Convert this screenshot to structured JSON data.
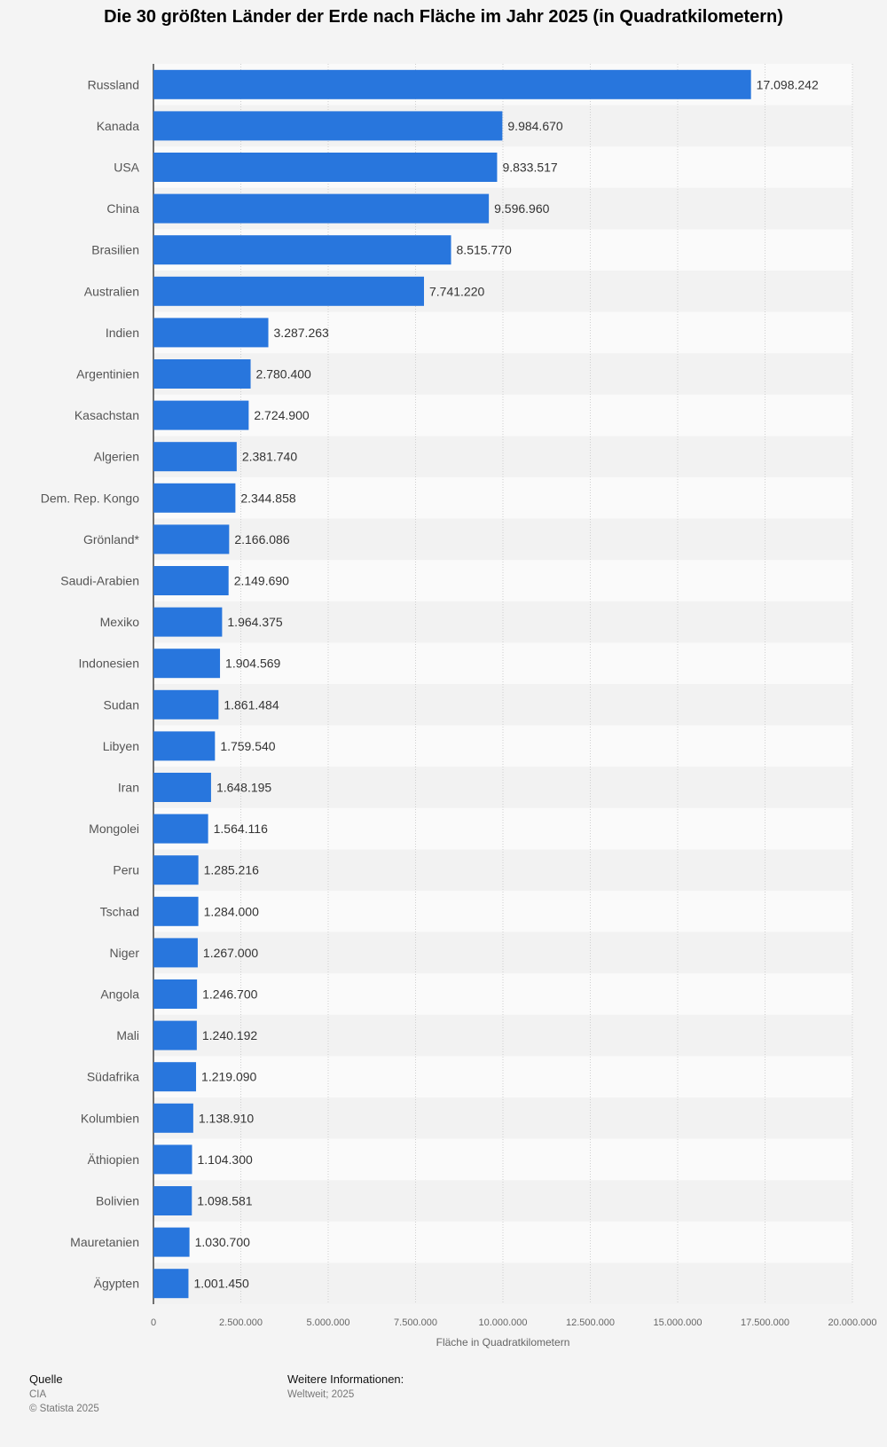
{
  "title": "Die 30 größten Länder der Erde nach Fläche im Jahr 2025 (in Quadratkilometern)",
  "chart_data": {
    "type": "bar",
    "orientation": "horizontal",
    "title": "Die 30 größten Länder der Erde nach Fläche im Jahr 2025 (in Quadratkilometern)",
    "xlabel": "Fläche in Quadratkilometern",
    "ylabel": "",
    "xlim": [
      0,
      20000000
    ],
    "grid": true,
    "bar_color": "#2876dd",
    "categories": [
      "Russland",
      "Kanada",
      "USA",
      "China",
      "Brasilien",
      "Australien",
      "Indien",
      "Argentinien",
      "Kasachstan",
      "Algerien",
      "Dem. Rep. Kongo",
      "Grönland*",
      "Saudi-Arabien",
      "Mexiko",
      "Indonesien",
      "Sudan",
      "Libyen",
      "Iran",
      "Mongolei",
      "Peru",
      "Tschad",
      "Niger",
      "Angola",
      "Mali",
      "Südafrika",
      "Kolumbien",
      "Äthiopien",
      "Bolivien",
      "Mauretanien",
      "Ägypten"
    ],
    "values": [
      17098242,
      9984670,
      9833517,
      9596960,
      8515770,
      7741220,
      3287263,
      2780400,
      2724900,
      2381740,
      2344858,
      2166086,
      2149690,
      1964375,
      1904569,
      1861484,
      1759540,
      1648195,
      1564116,
      1285216,
      1284000,
      1267000,
      1246700,
      1240192,
      1219090,
      1138910,
      1104300,
      1098581,
      1030700,
      1001450
    ],
    "value_labels": [
      "17.098.242",
      "9.984.670",
      "9.833.517",
      "9.596.960",
      "8.515.770",
      "7.741.220",
      "3.287.263",
      "2.780.400",
      "2.724.900",
      "2.381.740",
      "2.344.858",
      "2.166.086",
      "2.149.690",
      "1.964.375",
      "1.904.569",
      "1.861.484",
      "1.759.540",
      "1.648.195",
      "1.564.116",
      "1.285.216",
      "1.284.000",
      "1.267.000",
      "1.246.700",
      "1.240.192",
      "1.219.090",
      "1.138.910",
      "1.104.300",
      "1.098.581",
      "1.030.700",
      "1.001.450"
    ],
    "ticks": [
      0,
      2500000,
      5000000,
      7500000,
      10000000,
      12500000,
      15000000,
      17500000,
      20000000
    ],
    "tick_labels": [
      "0",
      "2.500.000",
      "5.000.000",
      "7.500.000",
      "10.000.000",
      "12.500.000",
      "15.000.000",
      "17.500.000",
      "20.000.000"
    ]
  },
  "footer": {
    "source_heading": "Quelle",
    "source": "CIA",
    "copyright": "© Statista 2025",
    "info_heading": "Weitere Informationen:",
    "info": "Weltweit; 2025"
  }
}
